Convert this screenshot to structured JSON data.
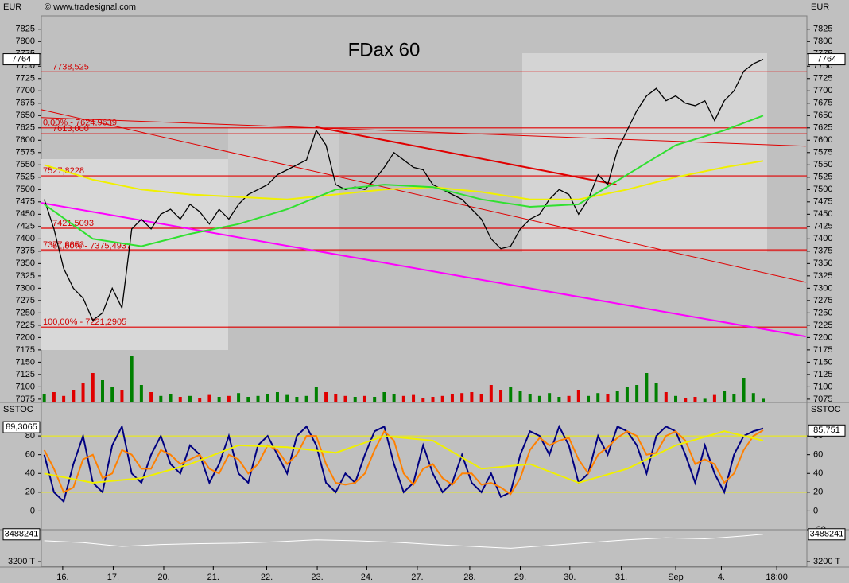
{
  "chart_data": [
    {
      "type": "line",
      "title": "FDax 60",
      "y_label": "EUR",
      "source": "© www.tradesignal.com",
      "last": 7764,
      "xlim": [
        -0.3,
        78.5
      ],
      "xticks": [
        {
          "value": 1.9,
          "label": "16."
        },
        {
          "value": 7.1,
          "label": "17."
        },
        {
          "value": 12.3,
          "label": "20."
        },
        {
          "value": 17.4,
          "label": "21."
        },
        {
          "value": 22.9,
          "label": "22."
        },
        {
          "value": 28.1,
          "label": "23."
        },
        {
          "value": 33.2,
          "label": "24."
        },
        {
          "value": 38.4,
          "label": "27."
        },
        {
          "value": 43.8,
          "label": "28."
        },
        {
          "value": 49,
          "label": "29."
        },
        {
          "value": 54.1,
          "label": "30."
        },
        {
          "value": 59.4,
          "label": "31."
        },
        {
          "value": 65,
          "label": "Sep"
        },
        {
          "value": 69.7,
          "label": "4."
        },
        {
          "value": 75.4,
          "label": "18:00"
        }
      ],
      "ylim": [
        7070,
        7852
      ],
      "yticks": [
        7075,
        7100,
        7125,
        7150,
        7175,
        7200,
        7225,
        7250,
        7275,
        7300,
        7325,
        7350,
        7375,
        7400,
        7425,
        7450,
        7475,
        7500,
        7525,
        7550,
        7575,
        7600,
        7625,
        7650,
        7675,
        7700,
        7725,
        7750,
        7775,
        7800,
        7825
      ],
      "series": [
        {
          "color": "#000000",
          "values": [
            7480,
            7420,
            7340,
            7300,
            7280,
            7235,
            7250,
            7300,
            7260,
            7420,
            7440,
            7420,
            7450,
            7460,
            7440,
            7470,
            7455,
            7430,
            7460,
            7440,
            7470,
            7490,
            7500,
            7510,
            7530,
            7540,
            7550,
            7560,
            7620,
            7590,
            7510,
            7500,
            7505,
            7500,
            7520,
            7545,
            7575,
            7560,
            7545,
            7540,
            7510,
            7500,
            7490,
            7480,
            7460,
            7440,
            7400,
            7380,
            7385,
            7420,
            7440,
            7450,
            7480,
            7500,
            7490,
            7450,
            7480,
            7530,
            7510,
            7580,
            7620,
            7660,
            7690,
            7705,
            7680,
            7690,
            7675,
            7670,
            7680,
            7640,
            7680,
            7700,
            7740,
            7755,
            7764
          ]
        },
        {
          "color": "#f0f000",
          "x": [
            0,
            5,
            10,
            15,
            20,
            25,
            30,
            35,
            40,
            45,
            50,
            55,
            60,
            65,
            70,
            74
          ],
          "values": [
            7550,
            7520,
            7500,
            7490,
            7485,
            7480,
            7490,
            7500,
            7505,
            7495,
            7480,
            7480,
            7500,
            7525,
            7545,
            7558
          ]
        },
        {
          "color": "#30e030",
          "x": [
            0,
            5,
            10,
            15,
            20,
            25,
            30,
            35,
            40,
            45,
            50,
            55,
            60,
            65,
            70,
            74
          ],
          "values": [
            7470,
            7400,
            7385,
            7410,
            7430,
            7460,
            7500,
            7510,
            7505,
            7480,
            7465,
            7470,
            7530,
            7590,
            7620,
            7650
          ]
        }
      ],
      "levels": [
        {
          "value": 7738.525,
          "label": "7738,525"
        },
        {
          "value": 7624.9639,
          "label": "0,00% - 7624,9639"
        },
        {
          "value": 7613,
          "label": "7613,000"
        },
        {
          "value": 7527.8228,
          "label": "7527,8228"
        },
        {
          "value": 7421.5093,
          "label": "7421,5093"
        },
        {
          "value": 7377.8853,
          "label": "7377,8853"
        },
        {
          "value": 7375.4937,
          "label": "61,80% - 7375,4937"
        },
        {
          "value": 7221.2905,
          "label": "100,00% - 7221,2905"
        }
      ],
      "trendlines": [
        {
          "color": "#ff00ff",
          "x": [
            -0.3,
            78.4
          ],
          "values": [
            7473,
            7202
          ]
        },
        {
          "color": "#e00000",
          "x": [
            -0.3,
            78.4
          ],
          "values": [
            7662,
            7312
          ]
        },
        {
          "color": "#e00000",
          "x": [
            -0.3,
            78.4
          ],
          "values": [
            7646,
            7588
          ]
        },
        {
          "color": "#e00000",
          "x": [
            27.9,
            58.9
          ],
          "values": [
            7627,
            7510
          ]
        }
      ]
    },
    {
      "type": "bar",
      "ylim": [
        0,
        100
      ],
      "up_color": "#008000",
      "down_color": "#e00000",
      "values": [
        15,
        20,
        12,
        25,
        40,
        60,
        45,
        30,
        25,
        95,
        35,
        20,
        12,
        15,
        10,
        12,
        8,
        14,
        10,
        12,
        18,
        10,
        12,
        15,
        20,
        14,
        10,
        12,
        30,
        20,
        16,
        12,
        10,
        12,
        10,
        20,
        15,
        12,
        14,
        8,
        10,
        12,
        15,
        18,
        20,
        15,
        35,
        25,
        30,
        22,
        15,
        12,
        18,
        10,
        12,
        25,
        12,
        18,
        15,
        22,
        30,
        35,
        60,
        40,
        20,
        12,
        8,
        10,
        6,
        14,
        22,
        15,
        50,
        18,
        6
      ]
    },
    {
      "type": "line",
      "title": "SSTOC",
      "ylim": [
        -20,
        114
      ],
      "yticks": [
        0,
        20,
        40,
        60,
        80
      ],
      "y2lim": [
        -20,
        114
      ],
      "y2ticks": [
        -20,
        0,
        20,
        40,
        60,
        80
      ],
      "levels": [
        80,
        20
      ],
      "last_left": {
        "value": 89.3065,
        "label": "89,3065"
      },
      "last_right": {
        "value": 85.751,
        "label": "85,751"
      },
      "series": [
        {
          "color": "#000080",
          "values": [
            60,
            20,
            10,
            50,
            80,
            30,
            20,
            70,
            90,
            40,
            30,
            60,
            80,
            50,
            40,
            70,
            60,
            30,
            50,
            80,
            40,
            30,
            70,
            80,
            60,
            40,
            80,
            90,
            70,
            30,
            20,
            40,
            30,
            60,
            85,
            90,
            50,
            20,
            30,
            70,
            40,
            20,
            30,
            60,
            30,
            20,
            40,
            15,
            20,
            60,
            85,
            80,
            60,
            90,
            70,
            30,
            40,
            80,
            60,
            90,
            85,
            70,
            40,
            80,
            90,
            85,
            60,
            30,
            70,
            40,
            20,
            60,
            80,
            85,
            88
          ]
        },
        {
          "color": "#ff8000",
          "values": [
            65,
            45,
            20,
            25,
            55,
            60,
            35,
            40,
            65,
            60,
            45,
            45,
            65,
            60,
            50,
            55,
            60,
            45,
            40,
            60,
            55,
            40,
            50,
            70,
            65,
            50,
            60,
            80,
            80,
            50,
            30,
            28,
            30,
            40,
            65,
            85,
            75,
            40,
            28,
            45,
            50,
            35,
            28,
            40,
            40,
            28,
            30,
            25,
            18,
            35,
            65,
            78,
            70,
            75,
            78,
            55,
            40,
            60,
            68,
            78,
            85,
            80,
            60,
            62,
            80,
            85,
            75,
            50,
            55,
            50,
            30,
            40,
            65,
            80,
            86
          ]
        },
        {
          "color": "#f0f000",
          "x": [
            0,
            5,
            10,
            15,
            20,
            25,
            30,
            35,
            40,
            45,
            50,
            55,
            60,
            65,
            70,
            74
          ],
          "values": [
            40,
            30,
            35,
            50,
            70,
            68,
            62,
            80,
            75,
            45,
            50,
            30,
            45,
            70,
            85,
            75
          ]
        }
      ]
    },
    {
      "type": "line",
      "ylim": [
        3150000,
        3520000
      ],
      "last": 3488241,
      "yticks": [
        {
          "value": 3200000,
          "label": "3200 T"
        }
      ],
      "series": [
        {
          "color": "#ffffff",
          "x": [
            0,
            4,
            8,
            12,
            16,
            20,
            24,
            28,
            32,
            36,
            40,
            44,
            48,
            52,
            56,
            60,
            64,
            68,
            72,
            74
          ],
          "values": [
            3420000,
            3400000,
            3360000,
            3380000,
            3390000,
            3395000,
            3410000,
            3430000,
            3420000,
            3405000,
            3380000,
            3360000,
            3340000,
            3370000,
            3400000,
            3430000,
            3450000,
            3440000,
            3470000,
            3488241
          ]
        }
      ]
    }
  ]
}
